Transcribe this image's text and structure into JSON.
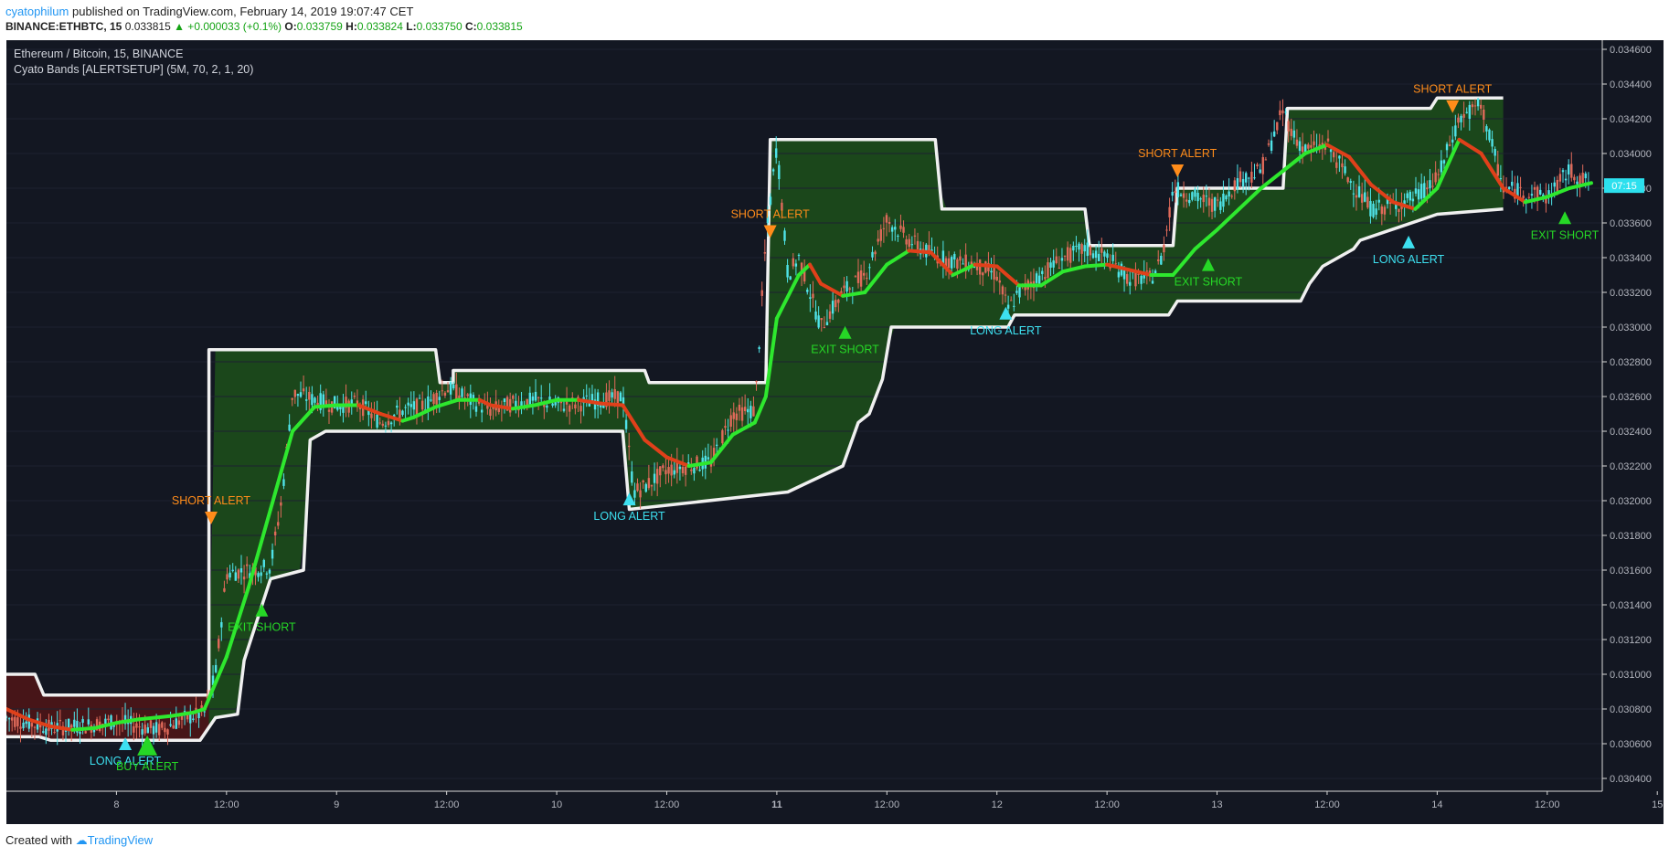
{
  "header": {
    "user": "cyatophilum",
    "published_text": "published on TradingView.com, February 14, 2019 19:07:47 CET",
    "symbol_line": "BINANCE:ETHBTC, 15",
    "last": "0.033815",
    "change": "▲ +0.000033 (+0.1%)",
    "o_label": "O:",
    "o": "0.033759",
    "h_label": "H:",
    "h": "0.033824",
    "l_label": "L:",
    "l": "0.033750",
    "c_label": "C:",
    "c": "0.033815"
  },
  "chart": {
    "title": "Ethereum / Bitcoin, 15, BINANCE",
    "indicator": "Cyato Bands [ALERTSETUP] (5M, 70, 2, 1, 20)",
    "price_badge": "07:15"
  },
  "footer": {
    "created_with": "Created with",
    "brand": "TradingView"
  },
  "colors": {
    "background": "#131722",
    "band_fill_bull": "#1b4a1b",
    "band_fill_bear": "#4a1518",
    "band_line": "#f0f0f0",
    "ma_bull": "#2ee82e",
    "ma_bear": "#e0401a",
    "price_line": "#49e4f0",
    "short_alert": "#ff8c1a",
    "long_alert": "#3de0f0",
    "exit_short": "#26d726",
    "buy_alert": "#26d726",
    "axis_text": "#b2b5be"
  },
  "chart_data": {
    "type": "line",
    "y_axis": {
      "ylim": [
        0.0304,
        0.0347
      ],
      "ticks": [
        "0.034600",
        "0.034400",
        "0.034200",
        "0.034000",
        "0.033800",
        "0.033600",
        "0.033400",
        "0.033200",
        "0.033000",
        "0.032800",
        "0.032600",
        "0.032400",
        "0.032200",
        "0.032000",
        "0.031800",
        "0.031600",
        "0.031400",
        "0.031200",
        "0.031000",
        "0.030800",
        "0.030600",
        "0.030400"
      ]
    },
    "x_axis": {
      "xlim": [
        7.5,
        14.75
      ],
      "ticks": [
        {
          "t": 8.0,
          "label": "8",
          "bold": false
        },
        {
          "t": 8.5,
          "label": "12:00",
          "bold": false
        },
        {
          "t": 9.0,
          "label": "9",
          "bold": false
        },
        {
          "t": 9.5,
          "label": "12:00",
          "bold": false
        },
        {
          "t": 10.0,
          "label": "10",
          "bold": false
        },
        {
          "t": 10.5,
          "label": "12:00",
          "bold": false
        },
        {
          "t": 11.0,
          "label": "11",
          "bold": true
        },
        {
          "t": 11.5,
          "label": "12:00",
          "bold": false
        },
        {
          "t": 12.0,
          "label": "12",
          "bold": false
        },
        {
          "t": 12.5,
          "label": "12:00",
          "bold": false
        },
        {
          "t": 13.0,
          "label": "13",
          "bold": false
        },
        {
          "t": 13.5,
          "label": "12:00",
          "bold": false
        },
        {
          "t": 14.0,
          "label": "14",
          "bold": false
        },
        {
          "t": 14.5,
          "label": "12:00",
          "bold": false
        },
        {
          "t": 15.0,
          "label": "15",
          "bold": false
        }
      ]
    },
    "upper_band": [
      [
        7.5,
        0.031
      ],
      [
        7.63,
        0.031
      ],
      [
        7.67,
        0.03088
      ],
      [
        8.0,
        0.03088
      ],
      [
        8.42,
        0.03088
      ],
      [
        8.42,
        0.03287
      ],
      [
        9.45,
        0.03287
      ],
      [
        9.47,
        0.03268
      ],
      [
        9.53,
        0.03268
      ],
      [
        9.53,
        0.03275
      ],
      [
        10.4,
        0.03275
      ],
      [
        10.42,
        0.03268
      ],
      [
        10.95,
        0.03268
      ],
      [
        10.97,
        0.03408
      ],
      [
        11.72,
        0.03408
      ],
      [
        11.75,
        0.03368
      ],
      [
        12.4,
        0.03368
      ],
      [
        12.42,
        0.03347
      ],
      [
        12.8,
        0.03347
      ],
      [
        12.82,
        0.0338
      ],
      [
        13.3,
        0.0338
      ],
      [
        13.32,
        0.03426
      ],
      [
        13.97,
        0.03426
      ],
      [
        14.0,
        0.03432
      ],
      [
        14.3,
        0.03432
      ]
    ],
    "lower_band": [
      [
        7.5,
        0.03064
      ],
      [
        7.65,
        0.03064
      ],
      [
        7.7,
        0.03062
      ],
      [
        8.0,
        0.03062
      ],
      [
        8.38,
        0.03062
      ],
      [
        8.45,
        0.03075
      ],
      [
        8.55,
        0.03077
      ],
      [
        8.58,
        0.03108
      ],
      [
        8.7,
        0.03155
      ],
      [
        8.85,
        0.0316
      ],
      [
        8.88,
        0.03235
      ],
      [
        8.95,
        0.0324
      ],
      [
        9.45,
        0.0324
      ],
      [
        10.3,
        0.0324
      ],
      [
        10.33,
        0.03195
      ],
      [
        11.05,
        0.03205
      ],
      [
        11.3,
        0.0322
      ],
      [
        11.37,
        0.03245
      ],
      [
        11.42,
        0.0325
      ],
      [
        11.48,
        0.0327
      ],
      [
        11.52,
        0.033
      ],
      [
        12.05,
        0.033
      ],
      [
        12.08,
        0.03307
      ],
      [
        12.78,
        0.03307
      ],
      [
        12.82,
        0.03315
      ],
      [
        13.38,
        0.03315
      ],
      [
        13.42,
        0.03325
      ],
      [
        13.48,
        0.03335
      ],
      [
        13.62,
        0.03345
      ],
      [
        13.65,
        0.0335
      ],
      [
        14.0,
        0.03365
      ],
      [
        14.3,
        0.03368
      ]
    ],
    "ma_line": [
      [
        7.5,
        0.0308
      ],
      [
        7.6,
        0.03074
      ],
      [
        7.7,
        0.0307
      ],
      [
        7.8,
        0.03068
      ],
      [
        7.9,
        0.03069
      ],
      [
        8.0,
        0.03072
      ],
      [
        8.1,
        0.03074
      ],
      [
        8.25,
        0.03076
      ],
      [
        8.35,
        0.03078
      ],
      [
        8.4,
        0.0308
      ],
      [
        8.5,
        0.0311
      ],
      [
        8.6,
        0.0315
      ],
      [
        8.7,
        0.03195
      ],
      [
        8.8,
        0.0324
      ],
      [
        8.9,
        0.03254
      ],
      [
        9.0,
        0.03255
      ],
      [
        9.1,
        0.03255
      ],
      [
        9.2,
        0.0325
      ],
      [
        9.3,
        0.03246
      ],
      [
        9.35,
        0.03248
      ],
      [
        9.45,
        0.03254
      ],
      [
        9.55,
        0.03258
      ],
      [
        9.65,
        0.03258
      ],
      [
        9.7,
        0.03255
      ],
      [
        9.8,
        0.03253
      ],
      [
        9.9,
        0.03255
      ],
      [
        10.0,
        0.03258
      ],
      [
        10.1,
        0.03258
      ],
      [
        10.2,
        0.03256
      ],
      [
        10.3,
        0.03255
      ],
      [
        10.4,
        0.03235
      ],
      [
        10.5,
        0.03225
      ],
      [
        10.6,
        0.0322
      ],
      [
        10.7,
        0.03222
      ],
      [
        10.8,
        0.03238
      ],
      [
        10.9,
        0.03245
      ],
      [
        10.95,
        0.0326
      ],
      [
        11.0,
        0.03305
      ],
      [
        11.1,
        0.0333
      ],
      [
        11.15,
        0.03336
      ],
      [
        11.2,
        0.03325
      ],
      [
        11.3,
        0.03318
      ],
      [
        11.4,
        0.0332
      ],
      [
        11.5,
        0.03336
      ],
      [
        11.6,
        0.03344
      ],
      [
        11.7,
        0.03343
      ],
      [
        11.8,
        0.0333
      ],
      [
        11.9,
        0.03336
      ],
      [
        12.0,
        0.03335
      ],
      [
        12.1,
        0.03324
      ],
      [
        12.2,
        0.03324
      ],
      [
        12.3,
        0.03332
      ],
      [
        12.4,
        0.03335
      ],
      [
        12.5,
        0.03336
      ],
      [
        12.6,
        0.03333
      ],
      [
        12.7,
        0.0333
      ],
      [
        12.8,
        0.0333
      ],
      [
        12.9,
        0.03345
      ],
      [
        13.0,
        0.03356
      ],
      [
        13.1,
        0.03368
      ],
      [
        13.2,
        0.0338
      ],
      [
        13.3,
        0.0339
      ],
      [
        13.4,
        0.034
      ],
      [
        13.5,
        0.03405
      ],
      [
        13.6,
        0.03398
      ],
      [
        13.7,
        0.03382
      ],
      [
        13.8,
        0.03372
      ],
      [
        13.9,
        0.03368
      ],
      [
        14.0,
        0.0338
      ],
      [
        14.1,
        0.03408
      ],
      [
        14.2,
        0.034
      ],
      [
        14.3,
        0.0338
      ],
      [
        14.4,
        0.03372
      ],
      [
        14.5,
        0.03375
      ],
      [
        14.6,
        0.0338
      ],
      [
        14.7,
        0.03383
      ]
    ],
    "price_line": [
      [
        7.5,
        0.03075
      ],
      [
        7.6,
        0.03072
      ],
      [
        7.7,
        0.03069
      ],
      [
        7.8,
        0.0307
      ],
      [
        7.9,
        0.03071
      ],
      [
        8.0,
        0.03073
      ],
      [
        8.1,
        0.0307
      ],
      [
        8.2,
        0.03068
      ],
      [
        8.3,
        0.03074
      ],
      [
        8.4,
        0.03078
      ],
      [
        8.45,
        0.031
      ],
      [
        8.5,
        0.03158
      ],
      [
        8.6,
        0.0316
      ],
      [
        8.7,
        0.03162
      ],
      [
        8.75,
        0.032
      ],
      [
        8.8,
        0.03262
      ],
      [
        8.9,
        0.03258
      ],
      [
        9.0,
        0.03255
      ],
      [
        9.1,
        0.03256
      ],
      [
        9.2,
        0.03245
      ],
      [
        9.3,
        0.03252
      ],
      [
        9.4,
        0.03255
      ],
      [
        9.5,
        0.03265
      ],
      [
        9.55,
        0.03262
      ],
      [
        9.6,
        0.03258
      ],
      [
        9.7,
        0.03252
      ],
      [
        9.8,
        0.03256
      ],
      [
        9.9,
        0.03258
      ],
      [
        10.0,
        0.03255
      ],
      [
        10.1,
        0.03256
      ],
      [
        10.2,
        0.03258
      ],
      [
        10.3,
        0.0326
      ],
      [
        10.35,
        0.03205
      ],
      [
        10.4,
        0.03208
      ],
      [
        10.5,
        0.03218
      ],
      [
        10.6,
        0.0322
      ],
      [
        10.7,
        0.03222
      ],
      [
        10.8,
        0.0325
      ],
      [
        10.9,
        0.03252
      ],
      [
        10.95,
        0.0335
      ],
      [
        11.0,
        0.03405
      ],
      [
        11.05,
        0.0333
      ],
      [
        11.1,
        0.0334
      ],
      [
        11.2,
        0.033
      ],
      [
        11.3,
        0.0332
      ],
      [
        11.4,
        0.0333
      ],
      [
        11.5,
        0.03362
      ],
      [
        11.6,
        0.0335
      ],
      [
        11.7,
        0.03342
      ],
      [
        11.8,
        0.03338
      ],
      [
        11.9,
        0.03336
      ],
      [
        12.0,
        0.0333
      ],
      [
        12.05,
        0.0331
      ],
      [
        12.1,
        0.0332
      ],
      [
        12.2,
        0.0333
      ],
      [
        12.3,
        0.0334
      ],
      [
        12.4,
        0.03345
      ],
      [
        12.5,
        0.0334
      ],
      [
        12.6,
        0.03328
      ],
      [
        12.7,
        0.03328
      ],
      [
        12.75,
        0.0334
      ],
      [
        12.8,
        0.0338
      ],
      [
        12.9,
        0.03375
      ],
      [
        13.0,
        0.0337
      ],
      [
        13.1,
        0.03385
      ],
      [
        13.2,
        0.0339
      ],
      [
        13.3,
        0.03425
      ],
      [
        13.35,
        0.0341
      ],
      [
        13.4,
        0.03402
      ],
      [
        13.5,
        0.03405
      ],
      [
        13.6,
        0.03385
      ],
      [
        13.7,
        0.03368
      ],
      [
        13.8,
        0.0337
      ],
      [
        13.9,
        0.03375
      ],
      [
        14.0,
        0.03385
      ],
      [
        14.1,
        0.0342
      ],
      [
        14.2,
        0.03428
      ],
      [
        14.3,
        0.0338
      ],
      [
        14.4,
        0.03378
      ],
      [
        14.5,
        0.03375
      ],
      [
        14.6,
        0.0339
      ],
      [
        14.7,
        0.03382
      ]
    ],
    "alerts": [
      {
        "t": 8.43,
        "price": 0.0319,
        "type": "short",
        "label": "SHORT ALERT",
        "dir": "down"
      },
      {
        "t": 8.66,
        "price": 0.03137,
        "type": "exit",
        "label": "EXIT SHORT",
        "dir": "up"
      },
      {
        "t": 8.04,
        "price": 0.0306,
        "type": "long",
        "label": "LONG ALERT",
        "dir": "up"
      },
      {
        "t": 8.14,
        "price": 0.03059,
        "type": "buy",
        "label": "BUY ALERT",
        "dir": "up"
      },
      {
        "t": 10.33,
        "price": 0.03201,
        "type": "long",
        "label": "LONG ALERT",
        "dir": "up"
      },
      {
        "t": 10.97,
        "price": 0.03355,
        "type": "short",
        "label": "SHORT ALERT",
        "dir": "down"
      },
      {
        "t": 11.31,
        "price": 0.03297,
        "type": "exit",
        "label": "EXIT SHORT",
        "dir": "up"
      },
      {
        "t": 12.04,
        "price": 0.03308,
        "type": "long",
        "label": "LONG ALERT",
        "dir": "up"
      },
      {
        "t": 12.82,
        "price": 0.0339,
        "type": "short",
        "label": "SHORT ALERT",
        "dir": "down"
      },
      {
        "t": 12.96,
        "price": 0.03336,
        "type": "exit",
        "label": "EXIT SHORT",
        "dir": "up"
      },
      {
        "t": 13.87,
        "price": 0.03349,
        "type": "long",
        "label": "LONG ALERT",
        "dir": "up"
      },
      {
        "t": 14.07,
        "price": 0.03427,
        "type": "short",
        "label": "SHORT ALERT",
        "dir": "down"
      },
      {
        "t": 14.58,
        "price": 0.03363,
        "type": "exit",
        "label": "EXIT SHORT",
        "dir": "up"
      }
    ]
  }
}
